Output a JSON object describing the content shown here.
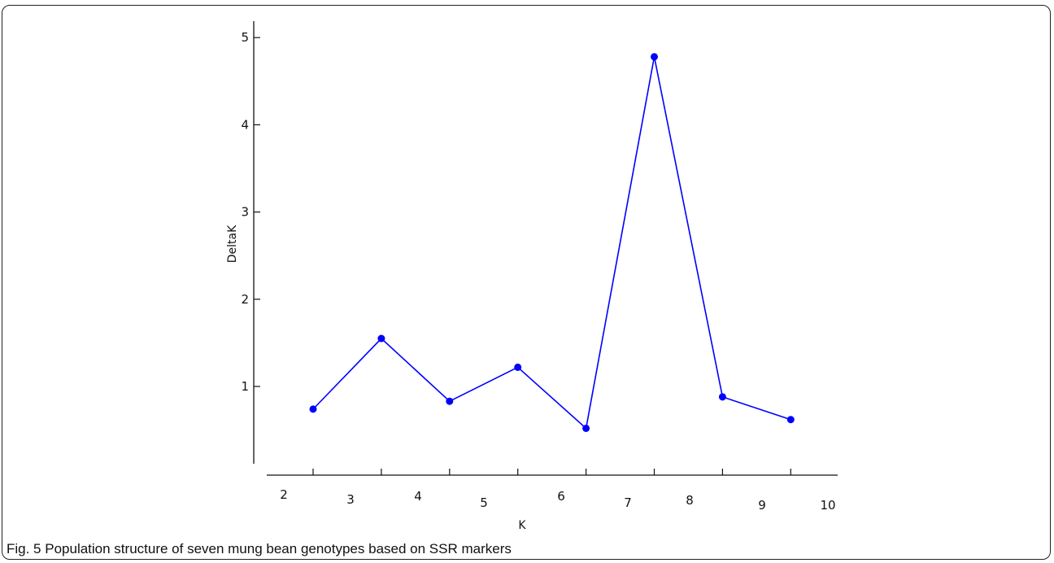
{
  "caption": "Fig. 5 Population structure of seven mung bean genotypes based on SSR markers",
  "chart_data": {
    "type": "line",
    "xlabel": "K",
    "ylabel": "DeltaK",
    "x_tick_labels": [
      "2",
      "3",
      "4",
      "5",
      "6",
      "7",
      "8",
      "9",
      "10"
    ],
    "y_ticks": [
      1,
      2,
      3,
      4,
      5
    ],
    "ylim": [
      0,
      5.2
    ],
    "series": [
      {
        "x": [
          2,
          3,
          4,
          5,
          6,
          7,
          8,
          9
        ],
        "values": [
          0.74,
          1.55,
          0.83,
          1.22,
          0.52,
          4.78,
          0.88,
          0.62
        ],
        "color": "#0000ff"
      }
    ],
    "grid": false,
    "legend": "none"
  }
}
